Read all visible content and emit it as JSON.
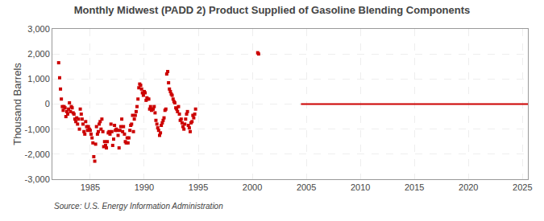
{
  "chart_data": {
    "type": "scatter",
    "title": "Monthly Midwest (PADD 2) Product Supplied of Gasoline Blending Components",
    "ylabel": "Thousand Barrels",
    "annotations": [
      "Source: U.S. Energy Information Administration"
    ],
    "xlim": [
      1981.5,
      2025.5
    ],
    "ylim": [
      -3000,
      3000
    ],
    "xticks": [
      1985,
      1990,
      1995,
      2000,
      2005,
      2010,
      2015,
      2020,
      2025
    ],
    "yticks": [
      {
        "value": -3000,
        "label": "-3,000"
      },
      {
        "value": -2000,
        "label": "-2,000"
      },
      {
        "value": -1000,
        "label": "-1,000"
      },
      0,
      {
        "value": 1000,
        "label": "1,000"
      },
      {
        "value": 2000,
        "label": "2,000"
      },
      {
        "value": 3000,
        "label": "3,000"
      }
    ],
    "grid": true,
    "series": [
      {
        "type": "scatter",
        "color": "#cc0000",
        "marker": "square",
        "x": [
          1982.08,
          1982.17,
          1982.25,
          1982.33,
          1982.42,
          1982.5,
          1982.58,
          1982.67,
          1982.75,
          1982.83,
          1982.92,
          1983.0,
          1983.08,
          1983.17,
          1983.25,
          1983.33,
          1983.42,
          1983.5,
          1983.58,
          1983.67,
          1983.75,
          1983.83,
          1983.92,
          1984.0,
          1984.08,
          1984.17,
          1984.25,
          1984.33,
          1984.42,
          1984.5,
          1984.58,
          1984.67,
          1984.75,
          1984.83,
          1984.92,
          1985.0,
          1985.08,
          1985.17,
          1985.25,
          1985.33,
          1985.42,
          1985.5,
          1985.58,
          1985.67,
          1985.75,
          1985.83,
          1985.92,
          1986.0,
          1986.08,
          1986.17,
          1986.25,
          1986.33,
          1986.42,
          1986.5,
          1986.58,
          1986.67,
          1986.75,
          1986.83,
          1986.92,
          1987.0,
          1987.08,
          1987.17,
          1987.25,
          1987.33,
          1987.42,
          1987.5,
          1987.58,
          1987.67,
          1987.75,
          1987.83,
          1987.92,
          1988.0,
          1988.08,
          1988.17,
          1988.25,
          1988.33,
          1988.42,
          1988.5,
          1988.58,
          1988.67,
          1988.75,
          1988.83,
          1988.92,
          1989.0,
          1989.08,
          1989.17,
          1989.25,
          1989.33,
          1989.42,
          1989.5,
          1989.58,
          1989.67,
          1989.75,
          1989.83,
          1989.92,
          1990.0,
          1990.08,
          1990.17,
          1990.25,
          1990.33,
          1990.42,
          1990.5,
          1990.58,
          1990.67,
          1990.75,
          1990.83,
          1990.92,
          1991.0,
          1991.08,
          1991.17,
          1991.25,
          1991.33,
          1991.42,
          1991.5,
          1991.58,
          1991.67,
          1991.75,
          1991.83,
          1991.92,
          1992.0,
          1992.08,
          1992.17,
          1992.25,
          1992.33,
          1992.42,
          1992.5,
          1992.58,
          1992.67,
          1992.75,
          1992.83,
          1992.92,
          1993.0,
          1993.08,
          1993.17,
          1993.25,
          1993.33,
          1993.42,
          1993.5,
          1993.58,
          1993.67,
          1993.75,
          1993.83,
          1993.92,
          1994.0,
          1994.08,
          1994.17,
          1994.25,
          1994.33,
          1994.42,
          1994.5,
          1994.58,
          1994.67,
          1994.75,
          2000.5,
          2000.58
        ],
        "values": [
          1650,
          1050,
          600,
          200,
          -100,
          -250,
          -100,
          -150,
          -500,
          -300,
          -400,
          -200,
          50,
          -300,
          -100,
          -150,
          -350,
          -400,
          -600,
          -700,
          -550,
          -800,
          -600,
          -1000,
          -200,
          -400,
          -600,
          -800,
          -1100,
          -1200,
          -700,
          -900,
          -1050,
          -900,
          -1000,
          -1050,
          -1200,
          -1350,
          -1550,
          -2100,
          -2280,
          -1600,
          -900,
          -1200,
          -1100,
          -800,
          -700,
          -1000,
          -600,
          -1100,
          -1700,
          -1500,
          -1650,
          -1750,
          -1500,
          -1150,
          -1100,
          -1200,
          -800,
          -1100,
          -1650,
          -1400,
          -850,
          -1050,
          -1000,
          -1050,
          -1250,
          -1750,
          -1050,
          -900,
          -600,
          -1100,
          -900,
          -1200,
          -1500,
          -1550,
          -1350,
          -1550,
          -1350,
          -1050,
          -850,
          -800,
          -450,
          -1100,
          -600,
          -450,
          -300,
          -100,
          200,
          650,
          800,
          750,
          600,
          450,
          350,
          500,
          450,
          150,
          250,
          200,
          200,
          -200,
          -100,
          -250,
          -200,
          -200,
          -100,
          -350,
          -650,
          -800,
          -950,
          -1050,
          -1250,
          -1150,
          -850,
          -750,
          -650,
          -550,
          -250,
          -200,
          1200,
          1300,
          850,
          600,
          500,
          400,
          350,
          200,
          100,
          50,
          -150,
          -200,
          -300,
          -100,
          -400,
          -650,
          -600,
          -750,
          -900,
          -1000,
          -800,
          -600,
          -400,
          -300,
          -850,
          -950,
          -1100,
          -750,
          -700,
          -450,
          -550,
          -400,
          -200,
          2050,
          2000
        ]
      },
      {
        "type": "line",
        "color": "#cc0000",
        "line_style": "solid",
        "x": [
          2004.5,
          2025.5
        ],
        "values": [
          0,
          0
        ]
      }
    ]
  }
}
